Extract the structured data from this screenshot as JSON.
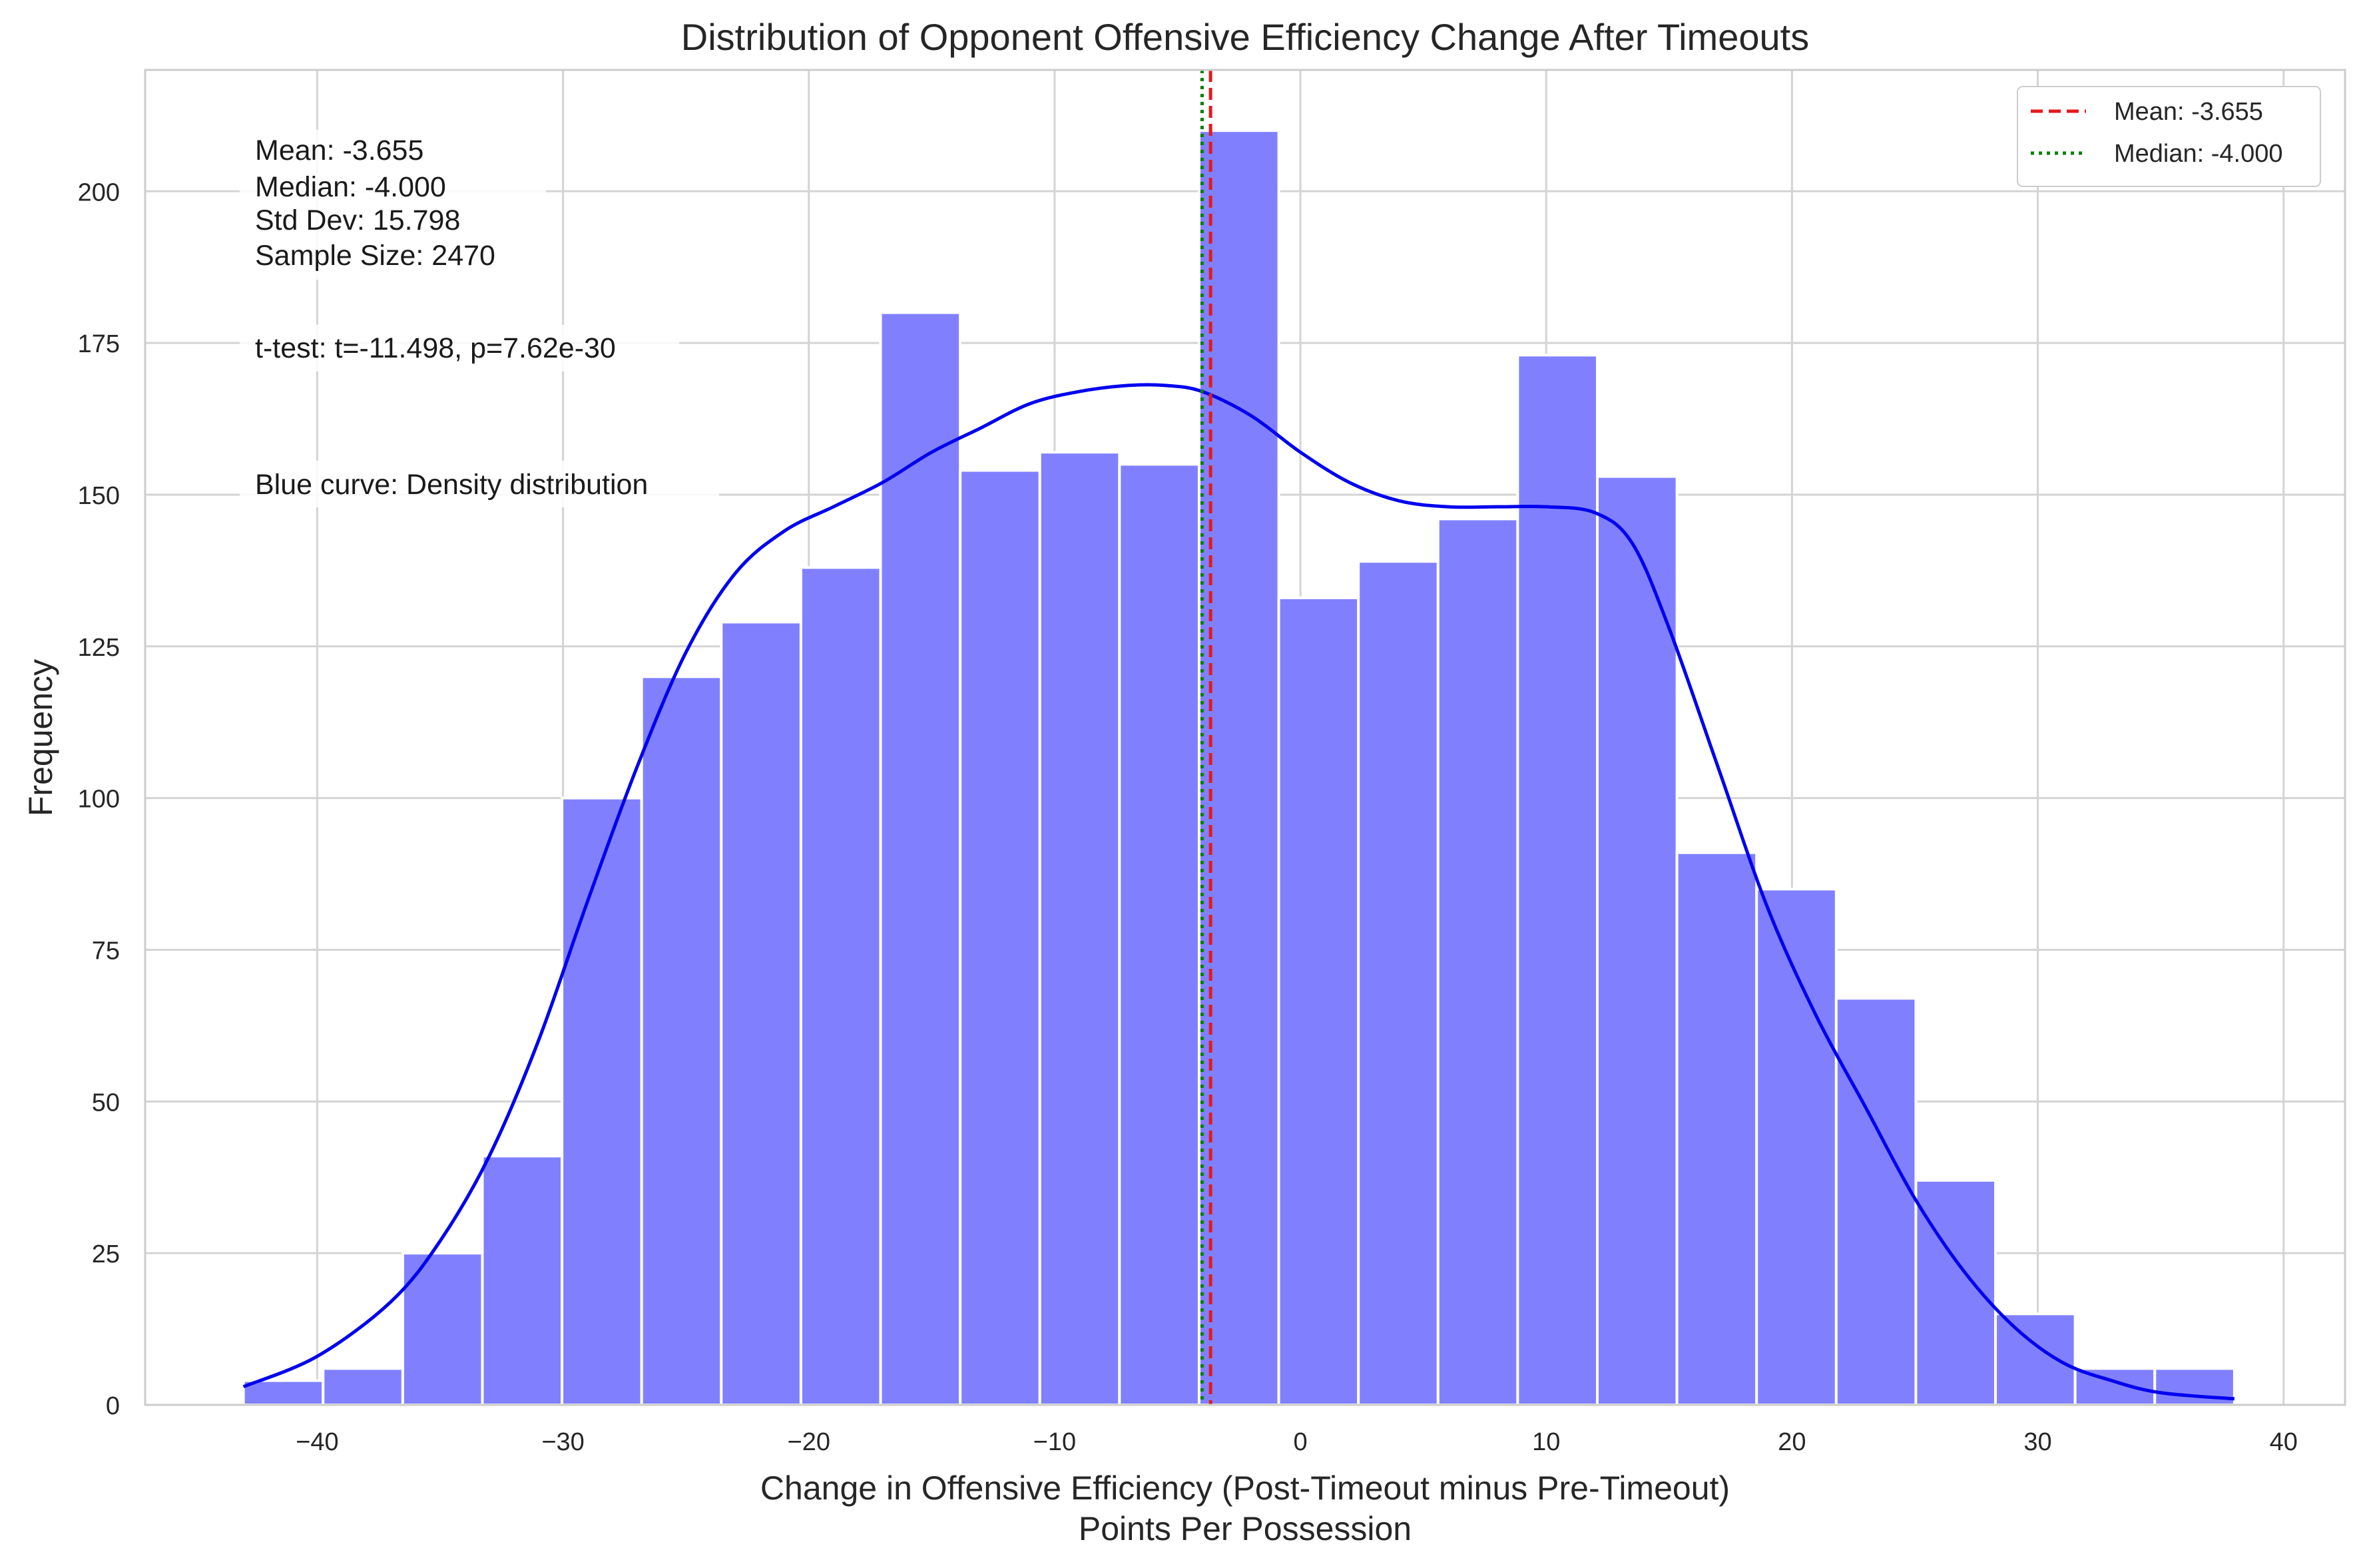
{
  "chart_data": {
    "type": "bar",
    "title": "Distribution of Opponent Offensive Efficiency Change After Timeouts",
    "xlabel_line1": "Change in Offensive Efficiency (Post-Timeout minus Pre-Timeout)",
    "xlabel_line2": "Points Per Possession",
    "ylabel": "Frequency",
    "xlim": [
      -47,
      42.5
    ],
    "ylim": [
      0,
      220
    ],
    "xticks": [
      -40,
      -30,
      -20,
      -10,
      0,
      10,
      20,
      30,
      40
    ],
    "xtick_labels": [
      "−40",
      "−30",
      "−20",
      "−10",
      "0",
      "10",
      "20",
      "30",
      "40"
    ],
    "yticks": [
      0,
      25,
      50,
      75,
      100,
      125,
      150,
      175,
      200
    ],
    "ytick_labels": [
      "0",
      "25",
      "50",
      "75",
      "100",
      "125",
      "150",
      "175",
      "200"
    ],
    "grid": true,
    "bin_edges": [
      -43.0,
      -39.76,
      -36.52,
      -33.28,
      -30.04,
      -26.8,
      -23.56,
      -20.32,
      -17.08,
      -13.84,
      -10.6,
      -7.36,
      -4.12,
      -0.88,
      2.36,
      5.6,
      8.84,
      12.08,
      15.32,
      18.56,
      21.8,
      25.04,
      28.28,
      31.52,
      34.76,
      38.0
    ],
    "counts": [
      4,
      6,
      25,
      41,
      100,
      120,
      129,
      138,
      180,
      154,
      157,
      155,
      210,
      133,
      139,
      146,
      173,
      153,
      91,
      85,
      67,
      37,
      15,
      6,
      6
    ],
    "bar_color": "#8080ff",
    "density_curve": {
      "color": "#0000ee",
      "x": [
        -43,
        -40,
        -37,
        -35,
        -33,
        -31,
        -29,
        -27,
        -25,
        -23,
        -21,
        -19,
        -17,
        -15,
        -13,
        -11,
        -9,
        -7,
        -5.5,
        -4,
        -2,
        0,
        2,
        4,
        6,
        8,
        10,
        12,
        13.5,
        15,
        17,
        19,
        21,
        23,
        25,
        27,
        29,
        31,
        33,
        35,
        38
      ],
      "y": [
        3,
        8,
        17,
        27,
        41,
        60,
        83,
        105,
        124,
        137,
        144,
        148,
        152,
        157,
        161,
        165,
        167,
        168,
        168,
        167,
        163,
        157,
        152,
        149,
        148,
        148,
        148,
        147,
        142,
        128,
        105,
        82,
        64,
        49,
        34,
        22,
        13,
        7,
        4,
        2,
        1
      ]
    },
    "mean_line": {
      "x": -3.655,
      "color": "#e41a1c",
      "style": "dashed"
    },
    "median_line": {
      "x": -4.0,
      "color": "#008000",
      "style": "dotted"
    },
    "legend": {
      "placement": "top-right",
      "entries": [
        "Mean: -3.655",
        "Median: -4.000"
      ]
    },
    "annotations": {
      "mean": "Mean: -3.655",
      "median": "Median: -4.000",
      "std": "Std Dev: 15.798",
      "sample": "Sample Size: 2470",
      "ttest": "t-test: t=-11.498, p=7.62e-30",
      "curve_note": "Blue curve: Density distribution"
    }
  }
}
